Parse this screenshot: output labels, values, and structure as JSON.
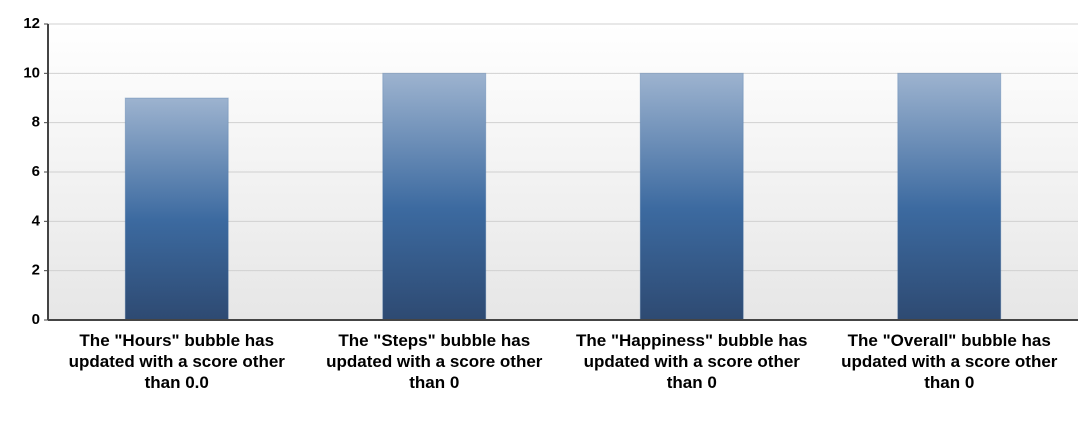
{
  "chart_data": {
    "type": "bar",
    "categories": [
      "The \"Hours\" bubble has updated with a score other than 0.0",
      "The \"Steps\" bubble has updated with a score other than 0",
      "The \"Happiness\" bubble has updated with a score other than 0",
      "The \"Overall\" bubble has updated with a score other than 0"
    ],
    "values": [
      9,
      10,
      10,
      10
    ],
    "color": "#3c6aa0",
    "ylim": [
      0,
      12
    ],
    "yticks": [
      0,
      2,
      4,
      6,
      8,
      10,
      12
    ],
    "grid": true
  }
}
